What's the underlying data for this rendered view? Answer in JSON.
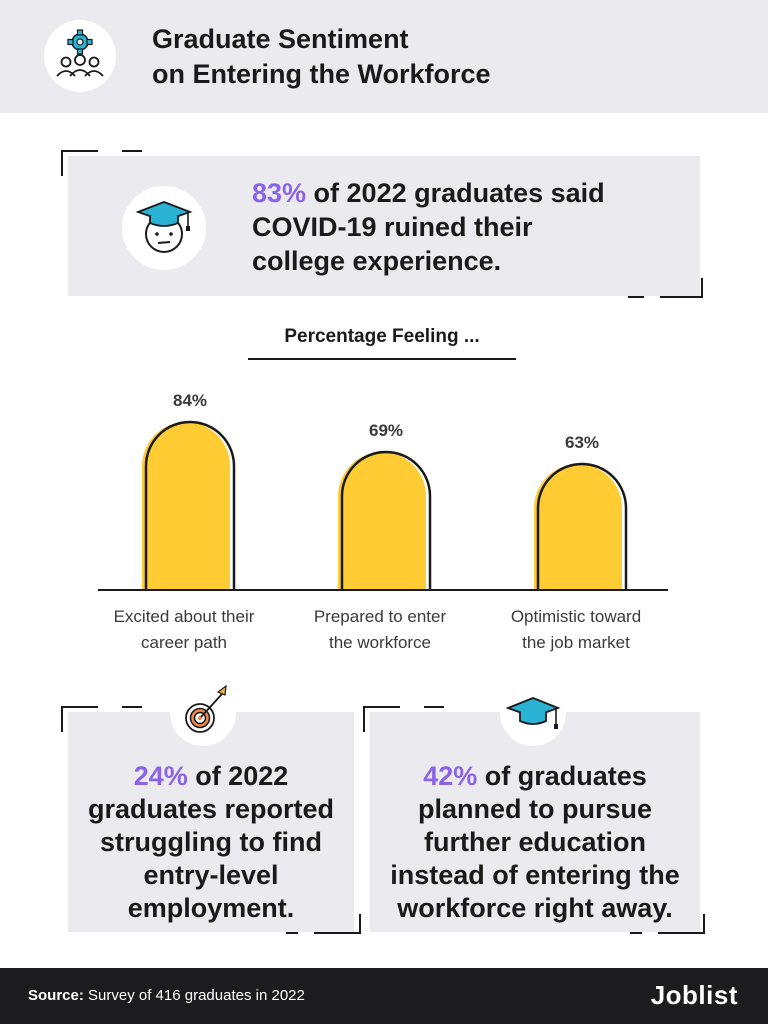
{
  "header": {
    "title_line1": "Graduate Sentiment",
    "title_line2": "on Entering the Workforce",
    "icon": "gear-people-icon"
  },
  "top_card": {
    "highlight": "83%",
    "line1_rest": " of 2022 graduates said",
    "line2": "COVID-19 ruined their",
    "line3": "college experience.",
    "icon": "graduate-face-icon"
  },
  "chart_data": {
    "type": "bar",
    "title": "Percentage Feeling ...",
    "categories": [
      [
        "Excited about their",
        "career path"
      ],
      [
        "Prepared to enter",
        "the workforce"
      ],
      [
        "Optimistic toward",
        "the job market"
      ]
    ],
    "values": [
      84,
      69,
      63
    ],
    "value_labels": [
      "84%",
      "69%",
      "63%"
    ],
    "bar_color": "#ffcd33",
    "xlabel": "",
    "ylabel": "",
    "grid": false
  },
  "bottom_left": {
    "highlight": "24%",
    "line1_rest": " of 2022",
    "line2": "graduates reported",
    "line3": "struggling to find",
    "line4": "entry-level",
    "line5": "employment.",
    "icon": "target-dart-icon"
  },
  "bottom_right": {
    "highlight": "42%",
    "line1_rest": " of graduates",
    "line2": "planned to pursue",
    "line3": "further education",
    "line4": "instead of entering the",
    "line5": "workforce right away.",
    "icon": "graduation-cap-icon"
  },
  "footer": {
    "source_label": "Source:",
    "source_text": " Survey of 416 graduates in 2022",
    "logo": "Joblist"
  },
  "colors": {
    "accent": "#8a63e8",
    "bar": "#ffcd33",
    "panel": "#ebebef",
    "icon_teal": "#2bb3d6"
  }
}
